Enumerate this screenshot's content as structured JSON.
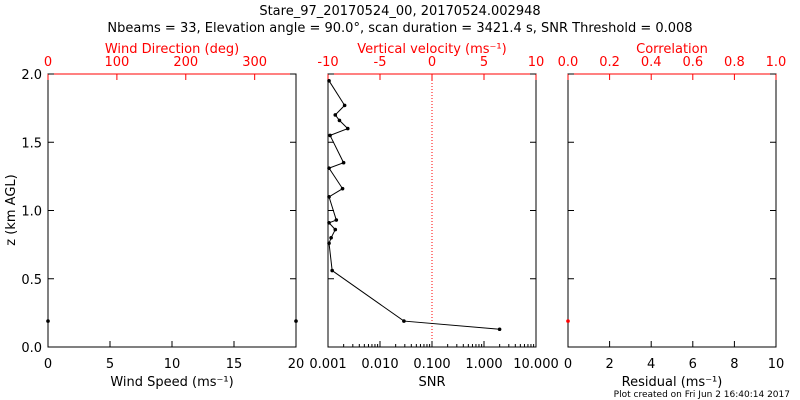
{
  "title_line1": "Stare_97_20170524_00, 20170524.002948",
  "title_line2": "Nbeams = 33, Elevation angle = 90.0°, scan duration = 3421.4 s, SNR Threshold = 0.008",
  "footer": "Plot created on Fri Jun  2 16:40:14 2017",
  "colors": {
    "axis_top": "#ff0000",
    "axis_bottom": "#000000",
    "data": "#000000",
    "zero_line": "#ff0000"
  },
  "chart_data": [
    {
      "type": "scatter",
      "panel": "left",
      "ylabel": "z (km AGL)",
      "ylim": [
        0,
        2.0
      ],
      "y_ticks": [
        "0.0",
        "0.5",
        "1.0",
        "1.5",
        "2.0"
      ],
      "x_bottom": {
        "label": "Wind Speed (ms⁻¹)",
        "range": [
          0,
          20
        ],
        "ticks": [
          "0",
          "5",
          "10",
          "15",
          "20"
        ]
      },
      "x_top": {
        "label": "Wind Direction (deg)",
        "range": [
          0,
          360
        ],
        "ticks": [
          "0",
          "100",
          "200",
          "300"
        ]
      },
      "points": [
        {
          "x": 0,
          "y": 0.19
        },
        {
          "x": 20,
          "y": 0.19
        }
      ]
    },
    {
      "type": "line",
      "panel": "middle",
      "x_bottom": {
        "label": "SNR",
        "scale": "log",
        "range": [
          0.001,
          10
        ],
        "ticks": [
          "0.001",
          "0.010",
          "0.100",
          "1.000",
          "10.000"
        ]
      },
      "x_top": {
        "label": "Vertical velocity (ms⁻¹)",
        "range": [
          -10,
          10
        ],
        "ticks": [
          "-10",
          "-5",
          "0",
          "5",
          "10"
        ]
      },
      "zero_line": "dotted",
      "series": [
        {
          "values": [
            {
              "x": -9.9,
              "y": 1.95
            },
            {
              "x": -8.4,
              "y": 1.77
            },
            {
              "x": -9.3,
              "y": 1.7
            },
            {
              "x": -8.9,
              "y": 1.66
            },
            {
              "x": -8.1,
              "y": 1.6
            },
            {
              "x": -9.8,
              "y": 1.55
            },
            {
              "x": -8.5,
              "y": 1.35
            },
            {
              "x": -9.9,
              "y": 1.31
            },
            {
              "x": -8.6,
              "y": 1.16
            },
            {
              "x": -9.9,
              "y": 1.1
            },
            {
              "x": -9.2,
              "y": 0.93
            },
            {
              "x": -9.9,
              "y": 0.91
            },
            {
              "x": -9.3,
              "y": 0.86
            },
            {
              "x": -9.7,
              "y": 0.8
            },
            {
              "x": -9.9,
              "y": 0.76
            },
            {
              "x": -9.6,
              "y": 0.56
            },
            {
              "x": -2.7,
              "y": 0.19
            },
            {
              "x": 6.5,
              "y": 0.13
            }
          ]
        }
      ]
    },
    {
      "type": "scatter",
      "panel": "right",
      "x_bottom": {
        "label": "Residual (ms⁻¹)",
        "range": [
          0,
          10
        ],
        "ticks": [
          "0",
          "2",
          "4",
          "6",
          "8",
          "10"
        ]
      },
      "x_top": {
        "label": "Correlation",
        "range": [
          0.0,
          1.0
        ],
        "ticks": [
          "0.0",
          "0.2",
          "0.4",
          "0.6",
          "0.8",
          "1.0"
        ]
      },
      "points": [
        {
          "x": 0,
          "y": 0.19,
          "color": "#ff0000"
        }
      ]
    }
  ]
}
